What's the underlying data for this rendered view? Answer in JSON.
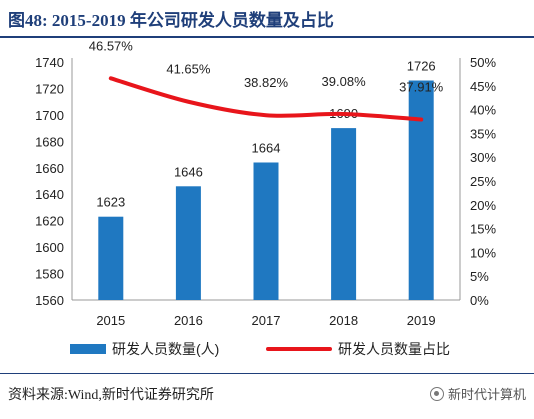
{
  "figure": {
    "title": "图48:   2015-2019 年公司研发人员数量及占比"
  },
  "source": {
    "text": "资料来源:Wind,新时代证券研究所",
    "watermark": "新时代计算机",
    "watermark_icon": "wechat-icon"
  },
  "chart_data": {
    "type": "bar",
    "categories": [
      "2015",
      "2016",
      "2017",
      "2018",
      "2019"
    ],
    "series": [
      {
        "name": "研发人员数量(人)",
        "type": "bar",
        "axis": "left",
        "color": "#1f78c1",
        "values": [
          1623,
          1646,
          1664,
          1690,
          1726
        ],
        "labels": [
          "1623",
          "1646",
          "1664",
          "1690",
          "1726"
        ]
      },
      {
        "name": "研发人员数量占比",
        "type": "line",
        "axis": "right",
        "color": "#e8151b",
        "values": [
          46.57,
          41.65,
          38.82,
          39.08,
          37.91
        ],
        "labels": [
          "46.57%",
          "41.65%",
          "38.82%",
          "39.08%",
          "37.91%"
        ]
      }
    ],
    "y_left": {
      "min": 1560,
      "max": 1740,
      "ticks": [
        "1560",
        "1580",
        "1600",
        "1620",
        "1640",
        "1660",
        "1680",
        "1700",
        "1720",
        "1740"
      ]
    },
    "y_right": {
      "min": 0,
      "max": 50,
      "ticks": [
        "0%",
        "5%",
        "10%",
        "15%",
        "20%",
        "25%",
        "30%",
        "35%",
        "40%",
        "45%",
        "50%"
      ]
    },
    "grid": false,
    "legend": "bottom"
  }
}
